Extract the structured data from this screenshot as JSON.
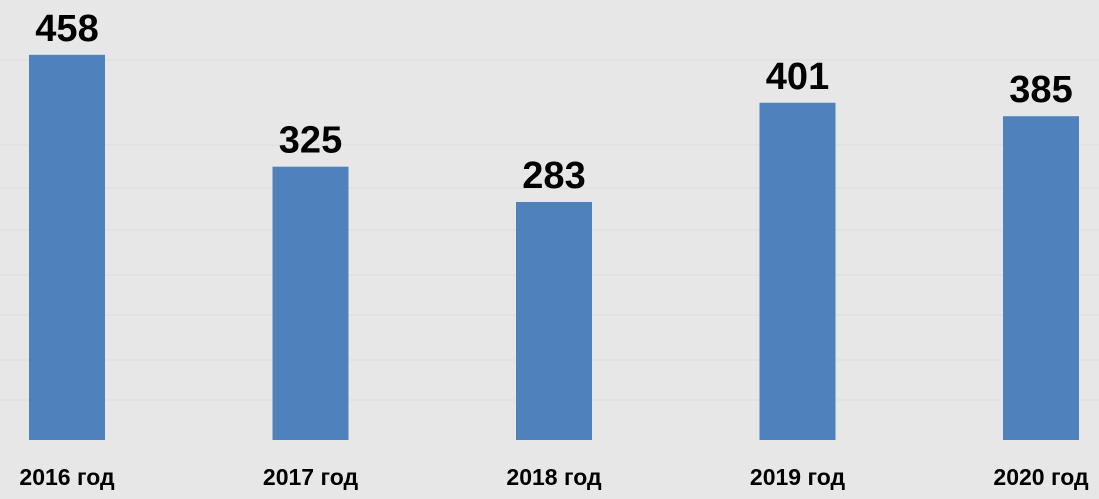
{
  "chart_data": {
    "type": "bar",
    "categories": [
      "2016 год",
      "2017 год",
      "2018 год",
      "2019 год",
      "2020 год"
    ],
    "values": [
      458,
      325,
      283,
      401,
      385
    ],
    "color": "#4f81bd"
  }
}
